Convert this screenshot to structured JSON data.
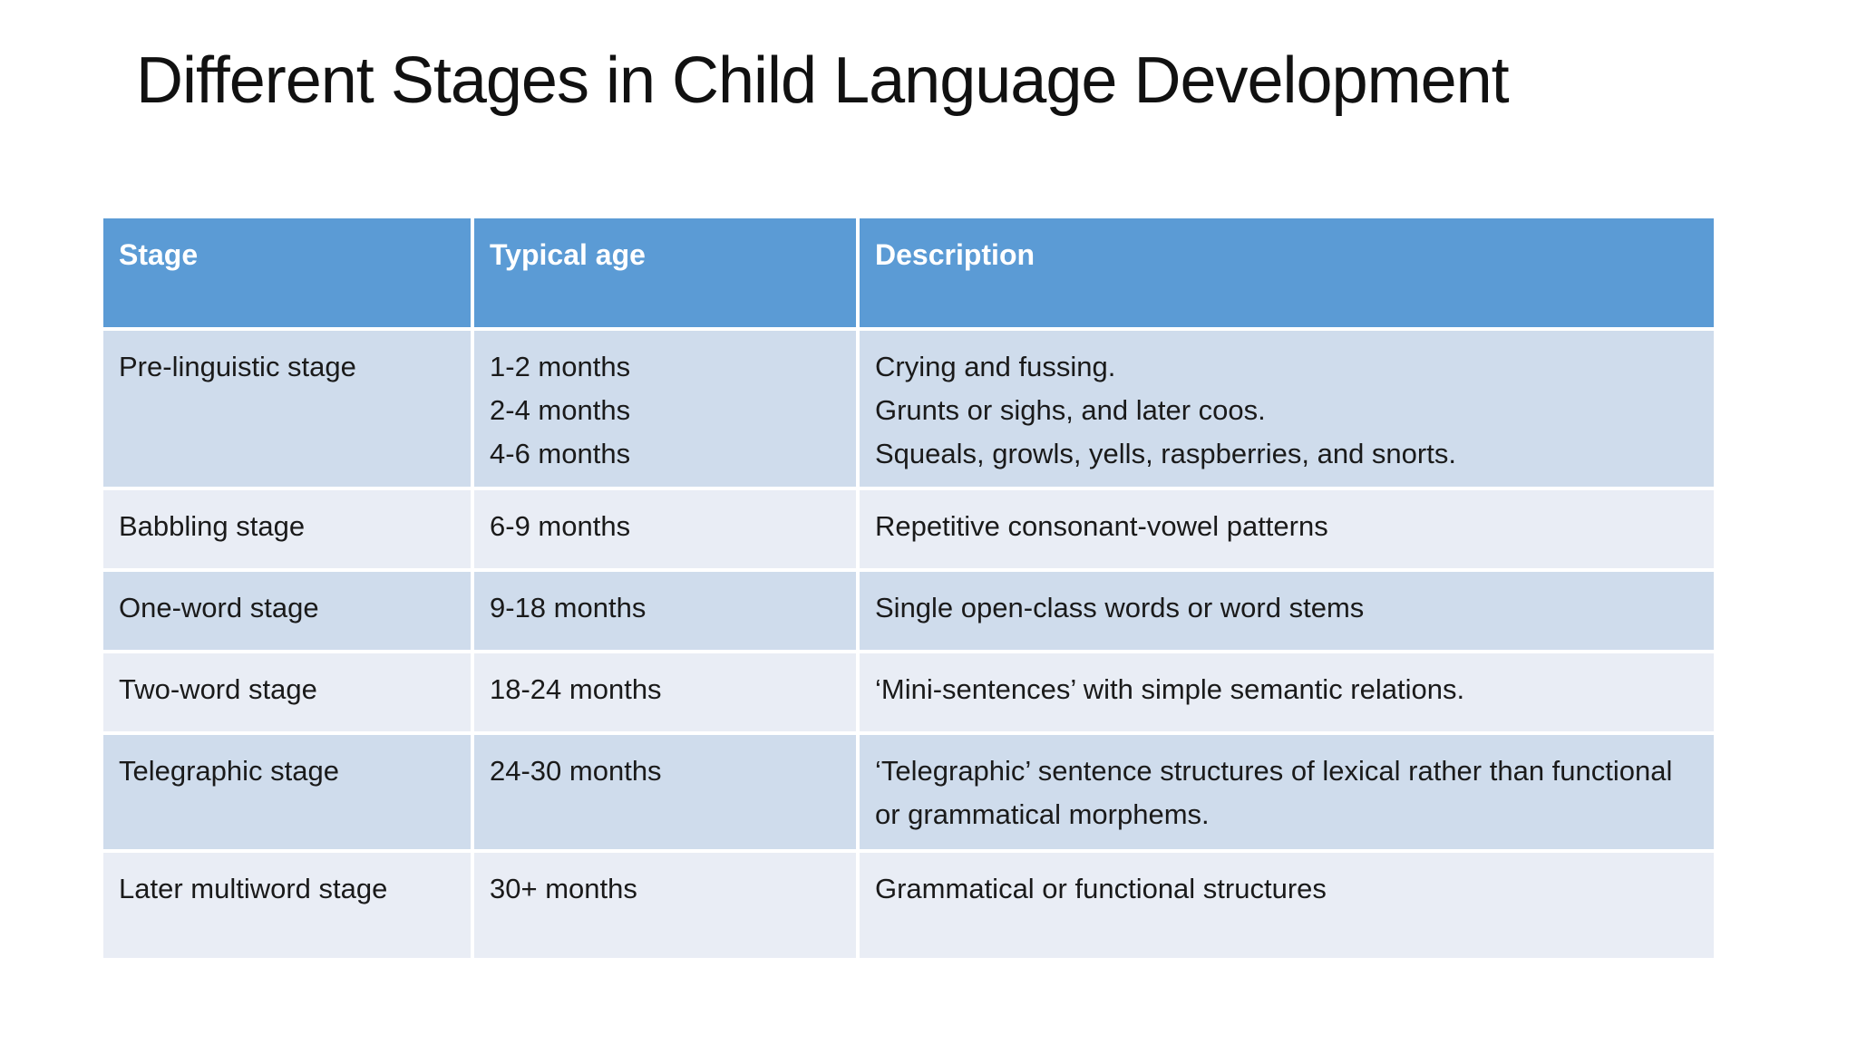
{
  "title": "Different Stages in Child Language Development",
  "colors": {
    "header_bg": "#5b9bd5",
    "header_text": "#ffffff",
    "row_band_dark": "#cfdcec",
    "row_band_light": "#e9edf5",
    "body_text": "#1a1a1a",
    "background": "#ffffff"
  },
  "table": {
    "headers": [
      "Stage",
      "Typical age",
      "Description"
    ],
    "rows": [
      {
        "stage": "Pre-linguistic stage",
        "ages": [
          "1-2 months",
          "2-4 months",
          "4-6 months"
        ],
        "descriptions": [
          "Crying and fussing.",
          "Grunts or sighs, and later coos.",
          "Squeals, growls, yells, raspberries, and snorts."
        ]
      },
      {
        "stage": "Babbling stage",
        "ages": [
          "6-9 months"
        ],
        "descriptions": [
          "Repetitive consonant-vowel patterns"
        ]
      },
      {
        "stage": "One-word stage",
        "ages": [
          "9-18 months"
        ],
        "descriptions": [
          "Single open-class words or word stems"
        ]
      },
      {
        "stage": "Two-word stage",
        "ages": [
          "18-24 months"
        ],
        "descriptions": [
          "‘Mini-sentences’ with simple semantic relations."
        ]
      },
      {
        "stage": "Telegraphic stage",
        "ages": [
          "24-30 months"
        ],
        "descriptions": [
          "‘Telegraphic’ sentence structures of lexical rather than functional or grammatical morphems."
        ]
      },
      {
        "stage": "Later multiword stage",
        "ages": [
          "30+ months"
        ],
        "descriptions": [
          "Grammatical or functional structures"
        ]
      }
    ]
  }
}
